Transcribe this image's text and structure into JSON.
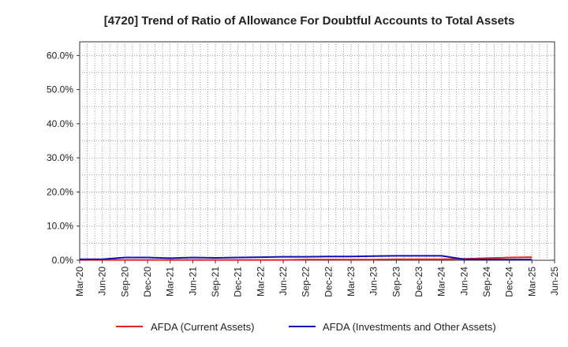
{
  "chart_data": {
    "type": "line",
    "title": "[4720]  Trend of Ratio of Allowance For Doubtful Accounts to Total Assets",
    "xlabel": "",
    "ylabel": "",
    "y_ticks": [
      "0.0%",
      "10.0%",
      "20.0%",
      "30.0%",
      "40.0%",
      "50.0%",
      "60.0%"
    ],
    "y_tick_values": [
      0,
      10,
      20,
      30,
      40,
      50,
      60
    ],
    "ylim": [
      0,
      64
    ],
    "categories": [
      "Mar-20",
      "Jun-20",
      "Sep-20",
      "Dec-20",
      "Mar-21",
      "Jun-21",
      "Sep-21",
      "Dec-21",
      "Mar-22",
      "Jun-22",
      "Sep-22",
      "Dec-22",
      "Mar-23",
      "Jun-23",
      "Sep-23",
      "Dec-23",
      "Mar-24",
      "Jun-24",
      "Sep-24",
      "Dec-24",
      "Mar-25",
      "Jun-25"
    ],
    "grid": true,
    "legend_position": "bottom",
    "series": [
      {
        "name": "AFDA (Current Assets)",
        "color": "#e8201e",
        "values": [
          0.1,
          0.1,
          0.1,
          0.1,
          0.1,
          0.1,
          0.1,
          0.1,
          0.1,
          0.1,
          0.2,
          0.2,
          0.2,
          0.2,
          0.3,
          0.3,
          0.3,
          0.4,
          0.6,
          0.8,
          0.9,
          null
        ]
      },
      {
        "name": "AFDA (Investments and Other Assets)",
        "color": "#1010b8",
        "values": [
          0.3,
          0.3,
          0.8,
          0.8,
          0.6,
          0.8,
          0.7,
          0.8,
          0.9,
          1.0,
          1.0,
          1.1,
          1.1,
          1.2,
          1.3,
          1.3,
          1.3,
          0.3,
          0.2,
          0.2,
          0.2,
          null
        ]
      }
    ]
  }
}
